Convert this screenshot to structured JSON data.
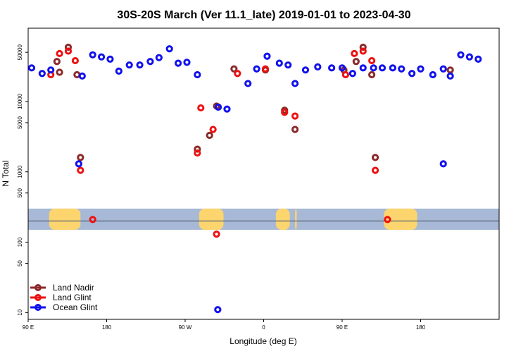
{
  "chart_data": {
    "type": "scatter",
    "title": "30S-20S March (Ver 11.1_late)   2019-01-01 to 2023-04-30",
    "xlabel": "Longitude (deg E)",
    "ylabel": "N Total",
    "y_scale": "log",
    "xlim": [
      -90,
      180
    ],
    "ylim": [
      8,
      110000
    ],
    "x_ticks": [
      {
        "value": -90,
        "label": "90 E"
      },
      {
        "value": -45,
        "label": "180"
      },
      {
        "value": 0,
        "label": "90 W"
      },
      {
        "value": 45,
        "label": "0"
      },
      {
        "value": 90,
        "label": "90 E"
      },
      {
        "value": 135,
        "label": "180"
      }
    ],
    "y_ticks": [
      {
        "value": 10,
        "label": "10"
      },
      {
        "value": 50,
        "label": "50"
      },
      {
        "value": 100,
        "label": "100"
      },
      {
        "value": 500,
        "label": "500"
      },
      {
        "value": 1000,
        "label": "1000"
      },
      {
        "value": 5000,
        "label": "5000"
      },
      {
        "value": 10000,
        "label": "10000"
      },
      {
        "value": 50000,
        "label": "50000"
      }
    ],
    "legend_position": "bottom-left",
    "series": [
      {
        "name": "Land Nadir",
        "color": "#8b2a2a",
        "points": [
          [
            -72,
            28000
          ],
          [
            -72,
            28000
          ],
          [
            -72,
            28000
          ],
          [
            -72,
            28000
          ],
          [
            -72,
            28000
          ],
          [
            -72,
            28000
          ],
          [
            -72,
            28000
          ],
          [
            -72,
            28000
          ],
          [
            -72,
            28000
          ],
          [
            -72,
            28000
          ],
          [
            -72,
            28000
          ],
          [
            -72,
            28000
          ],
          [
            -71,
            28000
          ],
          [
            -71,
            28000
          ],
          [
            -71,
            28000
          ],
          [
            -71,
            28000
          ],
          [
            -71,
            28000
          ],
          [
            -71,
            28000
          ]
        ]
      }
    ]
  }
}
